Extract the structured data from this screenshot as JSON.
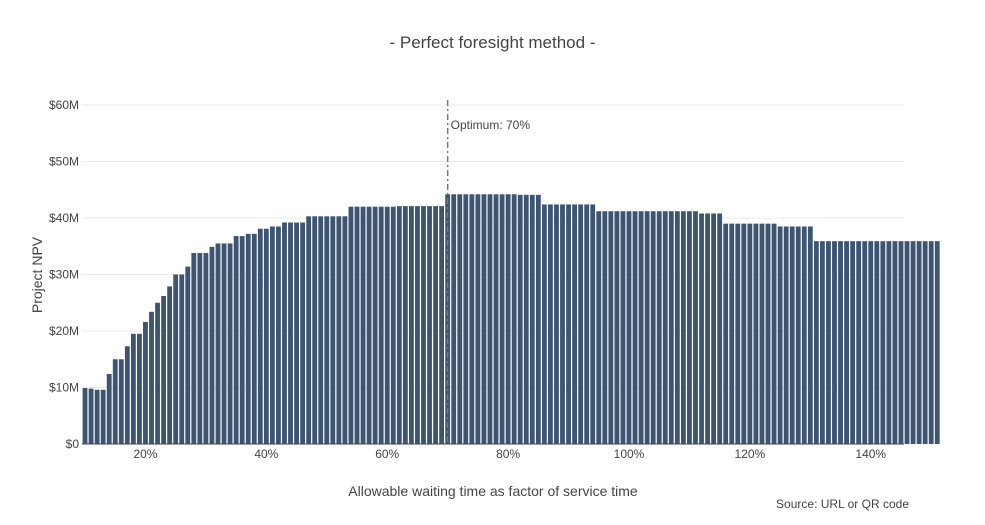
{
  "chart_data": {
    "type": "bar",
    "title": "-  Perfect foresight method  -",
    "xlabel": "Allowable waiting time as factor of service time",
    "ylabel": "Project NPV",
    "source_note": "Source: URL or QR code",
    "xlim": [
      9.5,
      145.5
    ],
    "ylim": [
      0,
      60
    ],
    "y_unit": "million dollars",
    "x_ticks": [
      {
        "value": 20,
        "label": "20%"
      },
      {
        "value": 40,
        "label": "40%"
      },
      {
        "value": 60,
        "label": "60%"
      },
      {
        "value": 80,
        "label": "80%"
      },
      {
        "value": 100,
        "label": "100%"
      },
      {
        "value": 120,
        "label": "120%"
      },
      {
        "value": 140,
        "label": "140%"
      }
    ],
    "y_ticks": [
      {
        "value": 0,
        "label": "$0"
      },
      {
        "value": 10,
        "label": "$10M"
      },
      {
        "value": 20,
        "label": "$20M"
      },
      {
        "value": 30,
        "label": "$30M"
      },
      {
        "value": 40,
        "label": "$40M"
      },
      {
        "value": 50,
        "label": "$50M"
      },
      {
        "value": 60,
        "label": "$60M"
      }
    ],
    "bar_color": "#3d5570",
    "grid": true,
    "optimum": {
      "x": 70,
      "label": "Optimum: 70%"
    },
    "x_start": 10,
    "x_step": 1,
    "values": [
      9.9,
      9.8,
      9.6,
      9.6,
      12.4,
      15.0,
      15.0,
      17.3,
      19.5,
      19.5,
      21.6,
      23.4,
      25.0,
      26.2,
      27.9,
      30.0,
      30.0,
      31.4,
      33.8,
      33.8,
      33.8,
      34.9,
      35.5,
      35.5,
      35.5,
      36.8,
      36.8,
      37.2,
      37.2,
      38.1,
      38.1,
      38.5,
      38.5,
      39.2,
      39.2,
      39.2,
      39.2,
      40.3,
      40.3,
      40.3,
      40.3,
      40.3,
      40.3,
      40.3,
      42.0,
      42.0,
      42.0,
      42.0,
      42.0,
      42.0,
      42.0,
      42.0,
      42.1,
      42.1,
      42.1,
      42.1,
      42.1,
      42.1,
      42.1,
      42.1,
      44.2,
      44.2,
      44.2,
      44.2,
      44.2,
      44.2,
      44.2,
      44.2,
      44.2,
      44.2,
      44.2,
      44.2,
      44.1,
      44.1,
      44.1,
      44.1,
      42.4,
      42.4,
      42.4,
      42.4,
      42.4,
      42.4,
      42.4,
      42.4,
      42.4,
      41.2,
      41.2,
      41.2,
      41.2,
      41.2,
      41.2,
      41.2,
      41.2,
      41.2,
      41.2,
      41.2,
      41.2,
      41.2,
      41.2,
      41.2,
      41.2,
      41.2,
      40.8,
      40.8,
      40.8,
      40.8,
      39.0,
      39.0,
      39.0,
      39.0,
      39.0,
      39.0,
      39.0,
      39.0,
      39.0,
      38.5,
      38.5,
      38.5,
      38.5,
      38.5,
      38.5,
      35.9,
      35.9,
      35.9,
      35.9,
      35.9,
      35.9,
      35.9,
      35.9,
      35.9,
      35.9,
      35.9,
      35.9,
      35.9,
      35.9,
      35.9,
      35.9,
      35.9,
      35.9,
      35.9,
      35.9,
      35.9
    ]
  }
}
